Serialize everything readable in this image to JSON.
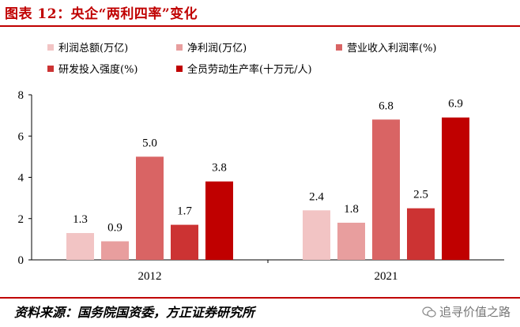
{
  "header": {
    "title": "图表 12：央企“两利四率”变化"
  },
  "footer": {
    "source": "资料来源：国务院国资委，方正证券研究所",
    "watermark": "追寻价值之路"
  },
  "chart_data": {
    "type": "bar",
    "categories": [
      "2012",
      "2021"
    ],
    "ylim": [
      0,
      8
    ],
    "yticks": [
      0,
      2,
      4,
      6,
      8
    ],
    "grid": false,
    "legend_position": "top",
    "series": [
      {
        "name": "利润总额(万亿)",
        "color": "#f2c4c4",
        "values": [
          1.3,
          2.4
        ],
        "labels": [
          "1.3",
          "2.4"
        ]
      },
      {
        "name": "净利润(万亿)",
        "color": "#e89e9e",
        "values": [
          0.9,
          1.8
        ],
        "labels": [
          "0.9",
          "1.8"
        ]
      },
      {
        "name": "营业收入利润率(%)",
        "color": "#d96464",
        "values": [
          5.0,
          6.8
        ],
        "labels": [
          "5.0",
          "6.8"
        ]
      },
      {
        "name": "研发投入强度(%)",
        "color": "#cc3333",
        "values": [
          1.7,
          2.5
        ],
        "labels": [
          "1.7",
          "2.5"
        ]
      },
      {
        "name": "全员劳动生产率(十万元/人)",
        "color": "#c00000",
        "values": [
          3.8,
          6.9
        ],
        "labels": [
          "3.8",
          "6.9"
        ]
      }
    ]
  }
}
